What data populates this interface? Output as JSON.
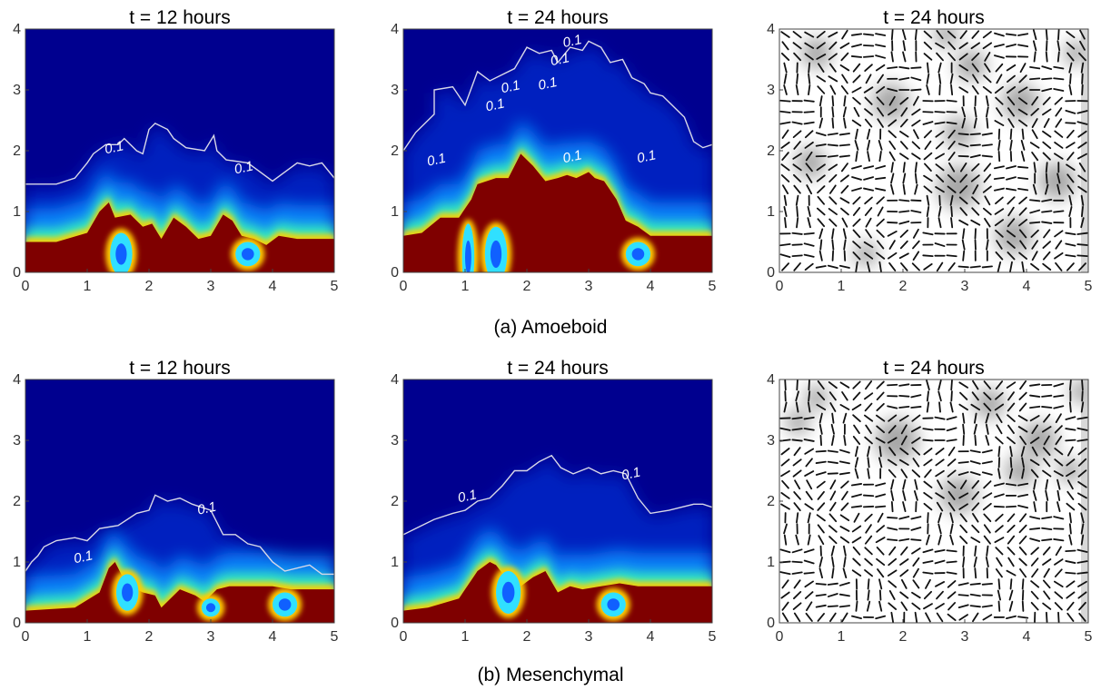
{
  "figure": {
    "row_captions": [
      "(a) Amoeboid",
      "(b) Mesenchymal"
    ]
  },
  "colors": {
    "background_blue": "#00008f",
    "saturated_red": "#7f0000",
    "contour_line": "#d8d8e8",
    "vector_stroke": "#111111",
    "field_light": "#ffffff",
    "field_dark": "#8a8a8a"
  },
  "chart_data": [
    {
      "type": "heatmap",
      "row": "(a) Amoeboid",
      "title": "t = 12 hours",
      "xlim": [
        0,
        5
      ],
      "ylim": [
        0,
        4
      ],
      "xticks": [
        "0",
        "1",
        "2",
        "3",
        "4",
        "5"
      ],
      "yticks": [
        "0",
        "1",
        "2",
        "3",
        "4"
      ],
      "colormap": "jet",
      "contour_level": 0.1,
      "contour_labels": [
        {
          "text": "0.1",
          "x": 1.3,
          "y": 1.95
        },
        {
          "text": "0.1",
          "x": 3.4,
          "y": 1.62
        }
      ],
      "contour_01": [
        [
          0,
          1.45
        ],
        [
          0.5,
          1.45
        ],
        [
          0.8,
          1.55
        ],
        [
          1.0,
          1.8
        ],
        [
          1.1,
          1.95
        ],
        [
          1.3,
          2.1
        ],
        [
          1.5,
          2.1
        ],
        [
          1.6,
          2.2
        ],
        [
          1.8,
          2.0
        ],
        [
          1.9,
          1.95
        ],
        [
          2.0,
          2.35
        ],
        [
          2.1,
          2.45
        ],
        [
          2.3,
          2.35
        ],
        [
          2.4,
          2.2
        ],
        [
          2.6,
          2.05
        ],
        [
          2.9,
          2.0
        ],
        [
          3.05,
          2.25
        ],
        [
          3.1,
          2.0
        ],
        [
          3.25,
          1.85
        ],
        [
          3.6,
          1.8
        ],
        [
          3.8,
          1.65
        ],
        [
          4.0,
          1.5
        ],
        [
          4.2,
          1.65
        ],
        [
          4.4,
          1.8
        ],
        [
          4.6,
          1.75
        ],
        [
          4.8,
          1.8
        ],
        [
          5.0,
          1.55
        ]
      ],
      "red_front": [
        [
          0,
          0.5
        ],
        [
          0.5,
          0.5
        ],
        [
          1.0,
          0.65
        ],
        [
          1.2,
          1.0
        ],
        [
          1.35,
          1.15
        ],
        [
          1.45,
          0.9
        ],
        [
          1.7,
          0.95
        ],
        [
          1.9,
          0.75
        ],
        [
          2.05,
          0.8
        ],
        [
          2.2,
          0.55
        ],
        [
          2.4,
          0.9
        ],
        [
          2.6,
          0.75
        ],
        [
          2.8,
          0.55
        ],
        [
          3.0,
          0.6
        ],
        [
          3.2,
          0.95
        ],
        [
          3.35,
          0.85
        ],
        [
          3.5,
          0.6
        ],
        [
          3.7,
          0.55
        ],
        [
          3.9,
          0.45
        ],
        [
          4.1,
          0.6
        ],
        [
          4.4,
          0.55
        ],
        [
          5.0,
          0.55
        ]
      ],
      "holes": [
        [
          1.55,
          0.3,
          0.18,
          0.35
        ],
        [
          3.6,
          0.3,
          0.2,
          0.2
        ]
      ]
    },
    {
      "type": "heatmap",
      "row": "(a) Amoeboid",
      "title": "t = 24 hours",
      "xlim": [
        0,
        5
      ],
      "ylim": [
        0,
        4
      ],
      "xticks": [
        "0",
        "1",
        "2",
        "3",
        "4",
        "5"
      ],
      "yticks": [
        "0",
        "1",
        "2",
        "3",
        "4"
      ],
      "colormap": "jet",
      "contour_level": 0.1,
      "contour_labels": [
        {
          "text": "0.1",
          "x": 0.4,
          "y": 1.75
        },
        {
          "text": "0.1",
          "x": 1.35,
          "y": 2.65
        },
        {
          "text": "0.1",
          "x": 1.6,
          "y": 2.95
        },
        {
          "text": "0.1",
          "x": 2.2,
          "y": 3.0
        },
        {
          "text": "0.1",
          "x": 2.4,
          "y": 3.4
        },
        {
          "text": "0.1",
          "x": 2.6,
          "y": 3.7
        },
        {
          "text": "0.1",
          "x": 2.6,
          "y": 1.8
        },
        {
          "text": "0.1",
          "x": 3.8,
          "y": 1.8
        }
      ],
      "contour_01": [
        [
          0,
          2.0
        ],
        [
          0.2,
          2.3
        ],
        [
          0.4,
          2.5
        ],
        [
          0.5,
          2.6
        ],
        [
          0.5,
          3.0
        ],
        [
          0.8,
          3.05
        ],
        [
          1.0,
          2.75
        ],
        [
          1.2,
          3.3
        ],
        [
          1.4,
          3.15
        ],
        [
          1.8,
          3.35
        ],
        [
          2.0,
          3.7
        ],
        [
          2.2,
          3.6
        ],
        [
          2.4,
          3.65
        ],
        [
          2.5,
          3.45
        ],
        [
          2.7,
          3.7
        ],
        [
          2.9,
          3.65
        ],
        [
          3.0,
          3.8
        ],
        [
          3.2,
          3.7
        ],
        [
          3.35,
          3.45
        ],
        [
          3.55,
          3.5
        ],
        [
          3.7,
          3.2
        ],
        [
          3.9,
          3.1
        ],
        [
          4.0,
          2.95
        ],
        [
          4.2,
          2.9
        ],
        [
          4.4,
          2.7
        ],
        [
          4.55,
          2.55
        ],
        [
          4.7,
          2.15
        ],
        [
          4.85,
          2.05
        ],
        [
          5.0,
          2.1
        ]
      ],
      "red_front": [
        [
          0,
          0.6
        ],
        [
          0.3,
          0.65
        ],
        [
          0.6,
          0.9
        ],
        [
          0.9,
          0.9
        ],
        [
          1.1,
          1.2
        ],
        [
          1.2,
          1.45
        ],
        [
          1.5,
          1.55
        ],
        [
          1.7,
          1.55
        ],
        [
          1.9,
          1.95
        ],
        [
          2.1,
          1.75
        ],
        [
          2.3,
          1.5
        ],
        [
          2.5,
          1.55
        ],
        [
          2.65,
          1.6
        ],
        [
          2.8,
          1.55
        ],
        [
          3.0,
          1.65
        ],
        [
          3.1,
          1.55
        ],
        [
          3.25,
          1.5
        ],
        [
          3.45,
          1.2
        ],
        [
          3.6,
          0.85
        ],
        [
          3.8,
          0.75
        ],
        [
          4.0,
          0.6
        ],
        [
          5.0,
          0.6
        ]
      ],
      "holes": [
        [
          1.05,
          0.25,
          0.1,
          0.55
        ],
        [
          1.5,
          0.3,
          0.18,
          0.45
        ],
        [
          3.8,
          0.3,
          0.2,
          0.2
        ]
      ]
    },
    {
      "type": "vector_field",
      "row": "(a) Amoeboid",
      "title": "t = 24 hours",
      "xlim": [
        0,
        5
      ],
      "ylim": [
        0,
        4
      ],
      "xticks": [
        "0",
        "1",
        "2",
        "3",
        "4",
        "5"
      ],
      "yticks": [
        "0",
        "1",
        "2",
        "3",
        "4"
      ],
      "grid": [
        26,
        22
      ],
      "dark_patches": [
        [
          0.6,
          3.6,
          0.25
        ],
        [
          1.8,
          2.8,
          0.3
        ],
        [
          3.1,
          3.4,
          0.25
        ],
        [
          2.9,
          2.3,
          0.25
        ],
        [
          3.9,
          2.8,
          0.3
        ],
        [
          4.8,
          3.6,
          0.2
        ],
        [
          2.9,
          1.4,
          0.35
        ],
        [
          4.5,
          1.5,
          0.3
        ],
        [
          0.5,
          1.8,
          0.25
        ],
        [
          3.8,
          0.6,
          0.3
        ],
        [
          1.4,
          0.3,
          0.2
        ],
        [
          2.7,
          3.9,
          0.2
        ]
      ]
    },
    {
      "type": "heatmap",
      "row": "(b) Mesenchymal",
      "title": "t = 12 hours",
      "xlim": [
        0,
        5
      ],
      "ylim": [
        0,
        4
      ],
      "xticks": [
        "0",
        "1",
        "2",
        "3",
        "4",
        "5"
      ],
      "yticks": [
        "0",
        "1",
        "2",
        "3",
        "4"
      ],
      "colormap": "jet",
      "contour_level": 0.1,
      "contour_labels": [
        {
          "text": "0.1",
          "x": 0.8,
          "y": 0.98
        },
        {
          "text": "0.1",
          "x": 2.8,
          "y": 1.78
        }
      ],
      "contour_01": [
        [
          0,
          0.85
        ],
        [
          0.1,
          1.0
        ],
        [
          0.2,
          1.1
        ],
        [
          0.3,
          1.25
        ],
        [
          0.5,
          1.35
        ],
        [
          0.8,
          1.4
        ],
        [
          1.0,
          1.35
        ],
        [
          1.2,
          1.55
        ],
        [
          1.5,
          1.6
        ],
        [
          1.8,
          1.8
        ],
        [
          2.0,
          1.85
        ],
        [
          2.1,
          2.1
        ],
        [
          2.3,
          2.0
        ],
        [
          2.5,
          2.05
        ],
        [
          2.7,
          1.95
        ],
        [
          3.0,
          1.85
        ],
        [
          3.2,
          1.45
        ],
        [
          3.4,
          1.45
        ],
        [
          3.6,
          1.3
        ],
        [
          3.8,
          1.25
        ],
        [
          4.0,
          1.0
        ],
        [
          4.2,
          0.85
        ],
        [
          4.6,
          0.95
        ],
        [
          4.8,
          0.8
        ],
        [
          5.0,
          0.8
        ]
      ],
      "red_front": [
        [
          0,
          0.2
        ],
        [
          0.8,
          0.25
        ],
        [
          1.2,
          0.5
        ],
        [
          1.35,
          0.9
        ],
        [
          1.45,
          1.0
        ],
        [
          1.55,
          0.8
        ],
        [
          1.8,
          0.55
        ],
        [
          1.9,
          0.5
        ],
        [
          2.1,
          0.45
        ],
        [
          2.2,
          0.25
        ],
        [
          2.5,
          0.55
        ],
        [
          2.75,
          0.45
        ],
        [
          2.9,
          0.35
        ],
        [
          3.1,
          0.55
        ],
        [
          3.3,
          0.6
        ],
        [
          3.6,
          0.6
        ],
        [
          4.0,
          0.6
        ],
        [
          4.3,
          0.55
        ],
        [
          5.0,
          0.55
        ]
      ],
      "holes": [
        [
          1.65,
          0.5,
          0.18,
          0.3
        ],
        [
          3.0,
          0.25,
          0.15,
          0.15
        ],
        [
          4.2,
          0.3,
          0.2,
          0.2
        ]
      ]
    },
    {
      "type": "heatmap",
      "row": "(b) Mesenchymal",
      "title": "t = 24 hours",
      "xlim": [
        0,
        5
      ],
      "ylim": [
        0,
        4
      ],
      "xticks": [
        "0",
        "1",
        "2",
        "3",
        "4",
        "5"
      ],
      "yticks": [
        "0",
        "1",
        "2",
        "3",
        "4"
      ],
      "colormap": "jet",
      "contour_level": 0.1,
      "contour_labels": [
        {
          "text": "0.1",
          "x": 0.9,
          "y": 1.98
        },
        {
          "text": "0.1",
          "x": 3.55,
          "y": 2.35
        }
      ],
      "contour_01": [
        [
          0,
          1.45
        ],
        [
          0.2,
          1.55
        ],
        [
          0.5,
          1.7
        ],
        [
          0.8,
          1.8
        ],
        [
          1.0,
          1.85
        ],
        [
          1.2,
          2.0
        ],
        [
          1.4,
          2.05
        ],
        [
          1.6,
          2.25
        ],
        [
          1.8,
          2.5
        ],
        [
          2.0,
          2.5
        ],
        [
          2.2,
          2.65
        ],
        [
          2.4,
          2.75
        ],
        [
          2.55,
          2.55
        ],
        [
          2.75,
          2.45
        ],
        [
          3.0,
          2.55
        ],
        [
          3.2,
          2.45
        ],
        [
          3.4,
          2.5
        ],
        [
          3.6,
          2.45
        ],
        [
          3.8,
          2.05
        ],
        [
          4.0,
          1.8
        ],
        [
          4.3,
          1.85
        ],
        [
          4.5,
          1.9
        ],
        [
          4.7,
          1.95
        ],
        [
          4.85,
          1.95
        ],
        [
          5.0,
          1.9
        ]
      ],
      "red_front": [
        [
          0,
          0.2
        ],
        [
          0.4,
          0.25
        ],
        [
          0.9,
          0.4
        ],
        [
          1.2,
          0.85
        ],
        [
          1.4,
          1.0
        ],
        [
          1.5,
          0.95
        ],
        [
          1.65,
          0.75
        ],
        [
          1.9,
          0.6
        ],
        [
          2.1,
          0.75
        ],
        [
          2.3,
          0.85
        ],
        [
          2.5,
          0.5
        ],
        [
          2.7,
          0.6
        ],
        [
          2.9,
          0.55
        ],
        [
          3.2,
          0.6
        ],
        [
          3.5,
          0.65
        ],
        [
          3.8,
          0.6
        ],
        [
          4.0,
          0.6
        ],
        [
          5.0,
          0.6
        ]
      ],
      "holes": [
        [
          1.7,
          0.5,
          0.2,
          0.35
        ],
        [
          3.4,
          0.3,
          0.2,
          0.2
        ]
      ]
    },
    {
      "type": "vector_field",
      "row": "(b) Mesenchymal",
      "title": "t = 24 hours",
      "xlim": [
        0,
        5
      ],
      "ylim": [
        0,
        4
      ],
      "xticks": [
        "0",
        "1",
        "2",
        "3",
        "4",
        "5"
      ],
      "yticks": [
        "0",
        "1",
        "2",
        "3",
        "4"
      ],
      "grid": [
        26,
        22
      ],
      "dark_patches": [
        [
          0.6,
          3.7,
          0.2
        ],
        [
          1.9,
          3.0,
          0.35
        ],
        [
          3.4,
          3.6,
          0.25
        ],
        [
          2.9,
          2.1,
          0.3
        ],
        [
          4.2,
          3.0,
          0.3
        ],
        [
          4.9,
          3.8,
          0.2
        ],
        [
          3.9,
          2.5,
          0.25
        ],
        [
          4.7,
          2.5,
          0.2
        ],
        [
          0.3,
          3.3,
          0.2
        ]
      ]
    }
  ]
}
